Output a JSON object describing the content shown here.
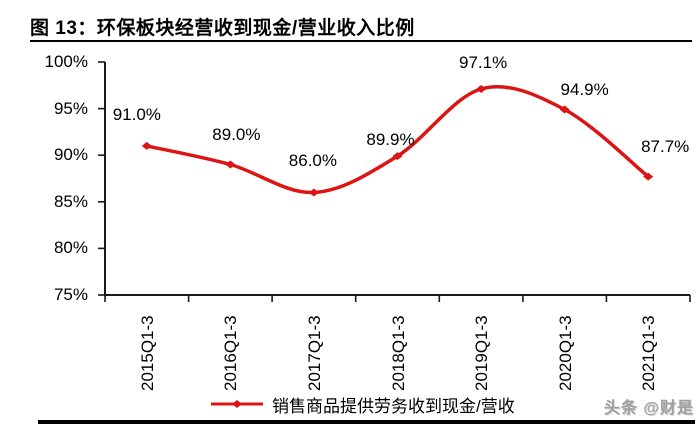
{
  "figure": {
    "watermark": "头条 @财是"
  },
  "chart_data": {
    "type": "line",
    "title": "图 13：环保板块经营收到现金/营业收入比例",
    "categories": [
      "2015Q1-3",
      "2016Q1-3",
      "2017Q1-3",
      "2018Q1-3",
      "2019Q1-3",
      "2020Q1-3",
      "2021Q1-3"
    ],
    "series": [
      {
        "name": "销售商品提供劳务收到现金/营收",
        "values": [
          91.0,
          89.0,
          86.0,
          89.9,
          97.1,
          94.9,
          87.7
        ],
        "labels": [
          "91.0%",
          "89.0%",
          "86.0%",
          "89.9%",
          "97.1%",
          "94.9%",
          "87.7%"
        ],
        "color": "#dc1414",
        "smooth": true,
        "marker": "diamond"
      }
    ],
    "ylim": [
      75,
      100
    ],
    "ytick_step": 5,
    "ytick_labels": [
      "100%",
      "95%",
      "90%",
      "85%",
      "80%",
      "75%"
    ],
    "xlabel": "",
    "ylabel": "",
    "grid": false,
    "legend_position": "bottom",
    "axis_color": "#1a1a1a"
  }
}
